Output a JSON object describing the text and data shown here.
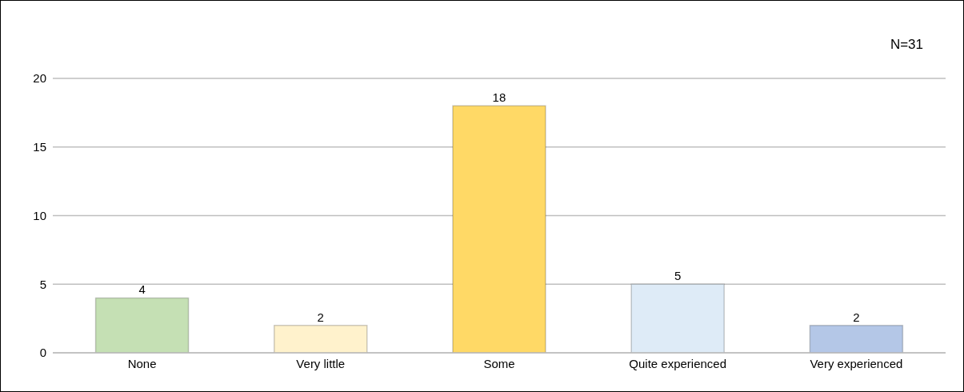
{
  "chart_data": {
    "type": "bar",
    "categories": [
      "None",
      "Very little",
      "Some",
      "Quite experienced",
      "Very experienced"
    ],
    "values": [
      4,
      2,
      18,
      5,
      2
    ],
    "colors": [
      "#c5e0b4",
      "#fff2cc",
      "#ffd966",
      "#deebf7",
      "#b4c7e7"
    ],
    "ylim": [
      0,
      20
    ],
    "yticks": [
      0,
      5,
      10,
      15,
      20
    ],
    "grid": "y",
    "data_labels": true,
    "annotations": [
      "N=31"
    ]
  }
}
